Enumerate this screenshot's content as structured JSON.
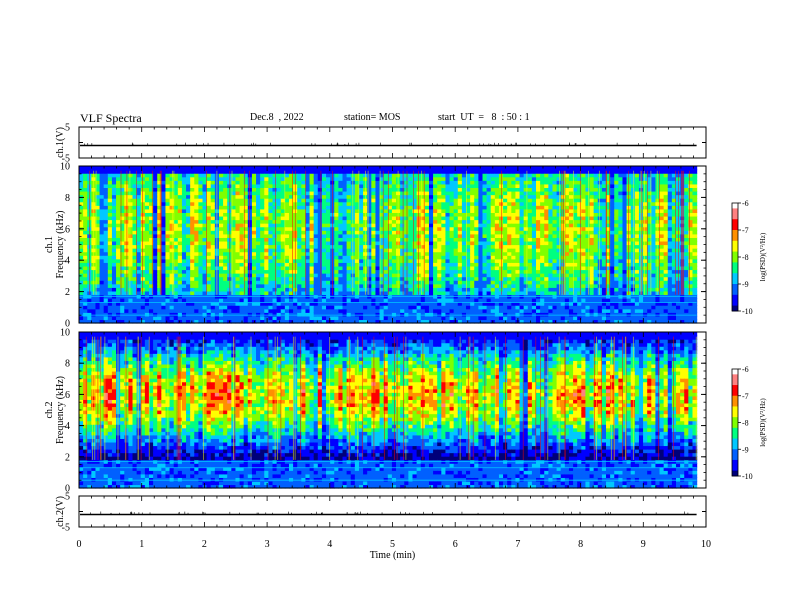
{
  "header": {
    "title": "VLF Spectra",
    "date": "Dec.8  , 2022",
    "station": "station= MOS",
    "start": "start  UT  =   8  : 50 : 1"
  },
  "colors": {
    "colormap": [
      "#00007a",
      "#0000ff",
      "#0060ff",
      "#00c8ff",
      "#00ff80",
      "#80ff00",
      "#ffff00",
      "#ff9000",
      "#ff0000",
      "#ff8080",
      "#ffffff"
    ]
  },
  "chart_data": [
    {
      "type": "line",
      "panel": "ch1-voltage",
      "ylabel": "ch.1(V)",
      "ylim": [
        -5,
        5
      ],
      "yticks": [
        "5",
        "-5"
      ],
      "baseline_y": 0
    },
    {
      "type": "heatmap",
      "panel": "ch1-spectrogram",
      "ylabel": "ch.1 Frequency (kHz)",
      "ylabel_line1": "ch.1",
      "ylabel_line2": "Frequency (kHz)",
      "ylim": [
        0,
        10
      ],
      "yticks": [
        "0",
        "2",
        "4",
        "6",
        "8",
        "10"
      ],
      "xlim": [
        0,
        9.85
      ],
      "colorbar": {
        "label": "log(PSD)(V²/Hz)",
        "range": [
          -10,
          -6
        ],
        "ticks": [
          "-6",
          "-7",
          "-8",
          "-9",
          "-10"
        ]
      },
      "dominant_band_khz": [
        2,
        10
      ],
      "peak_log_psd": -7.5
    },
    {
      "type": "heatmap",
      "panel": "ch2-spectrogram",
      "ylabel": "ch.2 Frequency (kHz)",
      "ylabel_line1": "ch.2",
      "ylabel_line2": "Frequency (kHz)",
      "ylim": [
        0,
        10
      ],
      "yticks": [
        "0",
        "2",
        "4",
        "6",
        "8",
        "10"
      ],
      "xlim": [
        0,
        9.85
      ],
      "colorbar": {
        "label": "log(PSD)(V²/Hz)",
        "range": [
          -10,
          -6
        ],
        "ticks": [
          "-6",
          "-7",
          "-8",
          "-9",
          "-10"
        ]
      },
      "dominant_band_khz": [
        4,
        8
      ],
      "peak_log_psd": -6.8
    },
    {
      "type": "line",
      "panel": "ch2-voltage",
      "ylabel": "ch.2(V)",
      "ylim": [
        -5,
        5
      ],
      "yticks": [
        "5",
        "-5"
      ],
      "baseline_y": 0
    }
  ],
  "xaxis": {
    "label": "Time  (min)",
    "range": [
      0,
      10
    ],
    "ticks": [
      "0",
      "1",
      "2",
      "3",
      "4",
      "5",
      "6",
      "7",
      "8",
      "9",
      "10"
    ]
  }
}
